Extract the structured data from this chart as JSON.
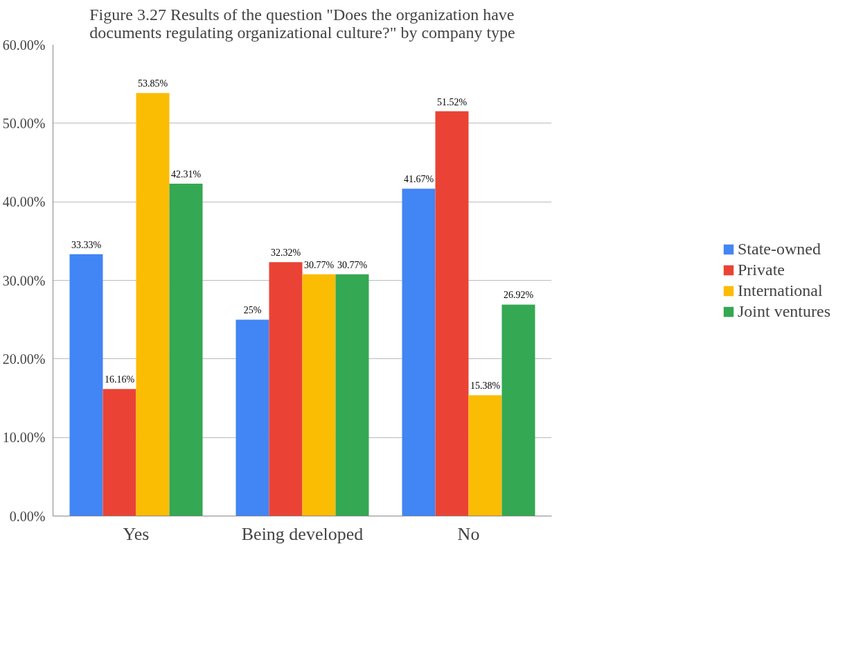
{
  "chart_data": {
    "type": "bar",
    "title": "Figure 3.27 Results of the question \"Does the organization have documents regulating organizational culture?\" by company type",
    "categories": [
      "Yes",
      "Being developed",
      "No"
    ],
    "series": [
      {
        "name": "State-owned",
        "color": "#4285f4",
        "values": [
          33.33,
          25,
          41.67
        ],
        "value_labels": [
          "33.33%",
          "25%",
          "41.67%"
        ]
      },
      {
        "name": "Private",
        "color": "#ea4335",
        "values": [
          16.16,
          32.32,
          51.52
        ],
        "value_labels": [
          "16.16%",
          "32.32%",
          "51.52%"
        ]
      },
      {
        "name": "International",
        "color": "#fbbc04",
        "values": [
          53.85,
          30.77,
          15.38
        ],
        "value_labels": [
          "53.85%",
          "30.77%",
          "15.38%"
        ]
      },
      {
        "name": "Joint ventures",
        "color": "#34a853",
        "values": [
          42.31,
          30.77,
          26.92
        ],
        "value_labels": [
          "42.31%",
          "30.77%",
          "26.92%"
        ]
      }
    ],
    "ylim": [
      0,
      60
    ],
    "yticks": [
      {
        "value": 0,
        "label": "0.00%"
      },
      {
        "value": 10,
        "label": "10.00%"
      },
      {
        "value": 20,
        "label": "20.00%"
      },
      {
        "value": 30,
        "label": "30.00%"
      },
      {
        "value": 40,
        "label": "40.00%"
      },
      {
        "value": 50,
        "label": "50.00%"
      },
      {
        "value": 60,
        "label": "60.00%"
      }
    ],
    "grid": "y",
    "legend": "right"
  }
}
